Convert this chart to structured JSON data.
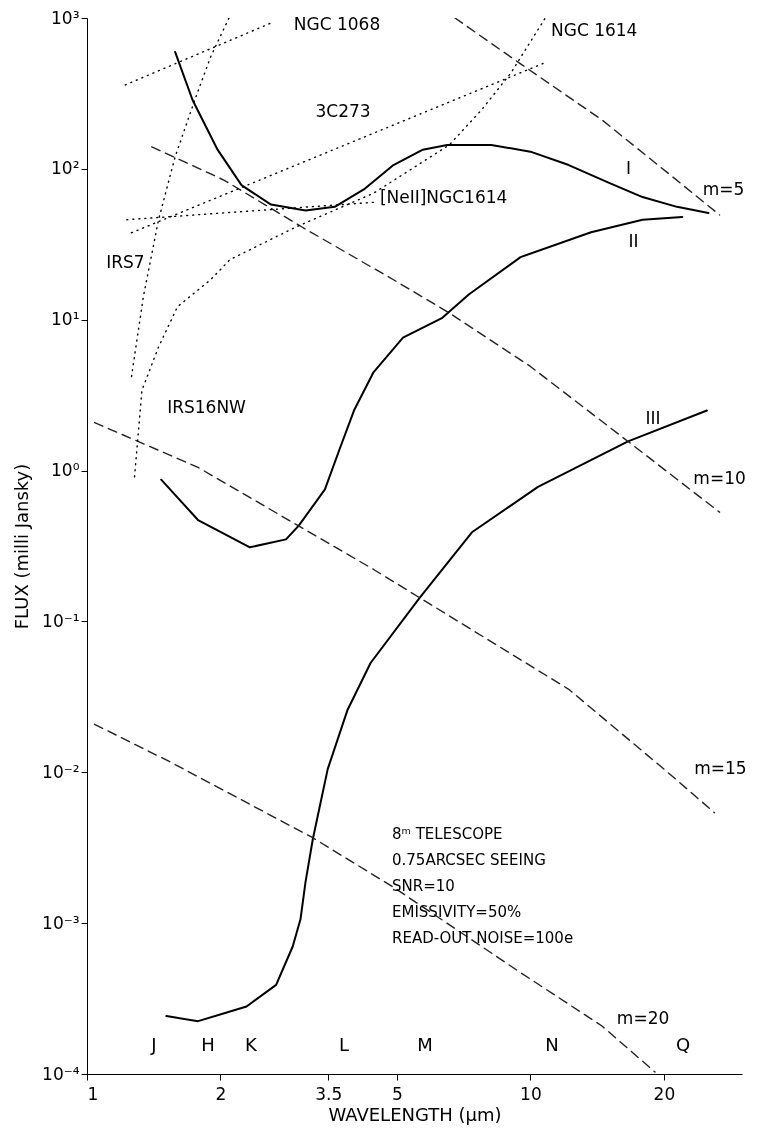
{
  "chart_data": {
    "type": "line",
    "xlabel": "WAVELENGTH (μm)",
    "ylabel": "FLUX (milli Jansky)",
    "log": "xy",
    "marker": "none",
    "xlim": [
      1,
      30
    ],
    "xticks": [
      1,
      2,
      3.5,
      5,
      10,
      20
    ],
    "ylim": [
      0.0001,
      1000
    ],
    "yticks": [
      {
        "value": 0.0001,
        "label": "10⁻⁴"
      },
      {
        "value": 0.001,
        "label": "10⁻³"
      },
      {
        "value": 0.01,
        "label": "10⁻²"
      },
      {
        "value": 0.1,
        "label": "10⁻¹"
      },
      {
        "value": 1,
        "label": "10⁰"
      },
      {
        "value": 10,
        "label": "10¹"
      },
      {
        "value": 100,
        "label": "10²"
      },
      {
        "value": 1000,
        "label": "10³"
      }
    ],
    "series": [
      {
        "name": "I",
        "color": "#000000",
        "line_style": "solid",
        "x": [
          1.58,
          1.73,
          1.97,
          2.23,
          2.6,
          3.11,
          3.62,
          4.21,
          4.91,
          5.72,
          6.49,
          8.16,
          10,
          12.2,
          15,
          17.9,
          21.4,
          25.2
        ],
        "values": [
          596,
          286,
          134,
          78,
          58,
          53,
          56,
          73,
          106,
          134,
          144,
          144,
          130,
          106,
          81,
          65,
          56,
          51
        ]
      },
      {
        "name": "II",
        "color": "#000000",
        "line_style": "solid",
        "x": [
          1.47,
          1.78,
          2.33,
          2.81,
          3.0,
          3.44,
          3.71,
          4.0,
          4.43,
          5.16,
          6.33,
          7.26,
          9.5,
          13.7,
          17.9,
          22.0
        ],
        "values": [
          0.87,
          0.47,
          0.31,
          0.35,
          0.43,
          0.75,
          1.38,
          2.5,
          4.5,
          7.6,
          10.3,
          14.7,
          26,
          38,
          46,
          48
        ]
      },
      {
        "name": "III",
        "color": "#000000",
        "line_style": "solid",
        "x": [
          1.51,
          1.78,
          2.29,
          2.67,
          2.91,
          3.03,
          3.11,
          3.23,
          3.49,
          3.87,
          4.36,
          5.63,
          7.38,
          10.4,
          16.6,
          25
        ],
        "values": [
          0.000242,
          0.000224,
          0.00028,
          0.00039,
          0.0007,
          0.00106,
          0.00187,
          0.0036,
          0.0105,
          0.026,
          0.053,
          0.144,
          0.39,
          0.78,
          1.56,
          2.5
        ]
      },
      {
        "name": "m=5",
        "color": "#222222",
        "line_style": "dashed",
        "x": [
          6.76,
          9.36,
          14.5,
          20.4,
          26.7
        ],
        "values": [
          1000,
          512,
          211,
          94,
          49.5
        ]
      },
      {
        "name": "m=10",
        "color": "#222222",
        "line_style": "dashed",
        "x": [
          1.4,
          2.04,
          3.06,
          4.91,
          6.56,
          10,
          16.6,
          26.7
        ],
        "values": [
          140,
          84,
          41,
          18.4,
          11.1,
          4.9,
          1.56,
          0.53
        ]
      },
      {
        "name": "m=15",
        "color": "#222222",
        "line_style": "dashed",
        "x": [
          1.04,
          1.78,
          3.0,
          4.43,
          12.2,
          20.4,
          26
        ],
        "values": [
          2.08,
          1.05,
          0.43,
          0.221,
          0.0355,
          0.01,
          0.0054
        ]
      },
      {
        "name": "m=20",
        "color": "#222222",
        "line_style": "dashed",
        "x": [
          1.04,
          1.55,
          3.22,
          4.91,
          9.5,
          14.5,
          19.1
        ],
        "values": [
          0.0208,
          0.0116,
          0.0037,
          0.00173,
          0.00047,
          0.000208,
          0.000103
        ]
      },
      {
        "name": "NGC 1068",
        "color": "#000000",
        "line_style": "dotted",
        "x": [
          1.22,
          2.6
        ],
        "values": [
          360,
          926
        ]
      },
      {
        "name": "3C273",
        "color": "#000000",
        "line_style": "dotted",
        "x": [
          1.26,
          10.9
        ],
        "values": [
          37.7,
          512
        ]
      },
      {
        "name": "[NeII]NGC1614",
        "color": "#000000",
        "line_style": "dotted",
        "x": [
          1.23,
          4.43
        ],
        "values": [
          46,
          60
        ]
      },
      {
        "name": "IRS7",
        "color": "#000000",
        "line_style": "dotted",
        "x": [
          1.26,
          1.34,
          1.45,
          1.58,
          1.75,
          1.9,
          2.09
        ],
        "values": [
          4.2,
          14.2,
          46,
          120,
          286,
          552,
          1000
        ]
      },
      {
        "name": "IRS16NW",
        "color": "#000000",
        "line_style": "dotted",
        "x": [
          1.28,
          1.33,
          1.45,
          1.6,
          1.9,
          2.1,
          2.95,
          4.43,
          6.56,
          7.76,
          9.04,
          10.8
        ],
        "values": [
          0.91,
          3.4,
          6.6,
          12.2,
          18.4,
          25,
          41,
          69,
          144,
          246,
          433,
          1000
        ]
      }
    ],
    "annotations": [
      "NGC 1614",
      "J",
      "H",
      "K",
      "L",
      "M",
      "N",
      "Q",
      "8ᵐ TELESCOPE",
      "0.75ARCSEC SEEING",
      "SNR=10",
      "EMISSIVITY=50%",
      "READ-OUT NOISE=100e"
    ]
  }
}
